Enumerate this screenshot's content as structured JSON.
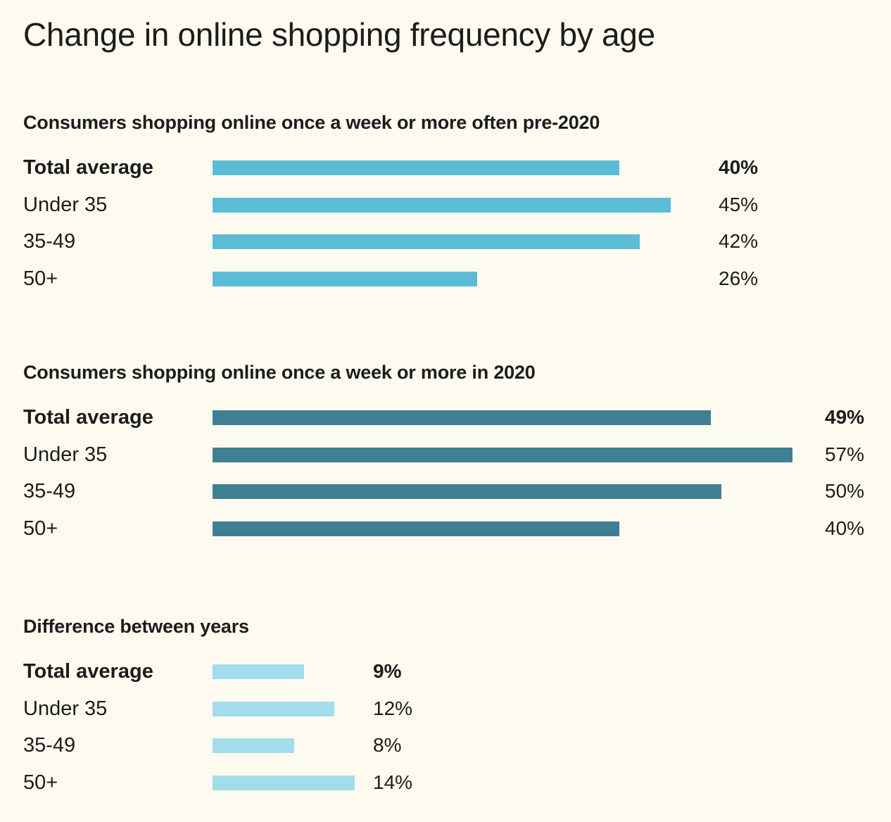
{
  "chart_data": {
    "type": "bar",
    "orientation": "horizontal",
    "title": "Change in online shopping frequency by age",
    "value_scale_max": 57,
    "panels": [
      {
        "title": "Consumers shopping online once a week or more often pre-2020",
        "color": "#5bbcd6",
        "value_column": "right",
        "categories": [
          "Total average",
          "Under 35",
          "35-49",
          "50+"
        ],
        "values": [
          40,
          45,
          42,
          26
        ],
        "labels": [
          "40%",
          "45%",
          "42%",
          "26%"
        ]
      },
      {
        "title": "Consumers shopping online once a week or more in 2020",
        "color": "#3e7f93",
        "value_column": "far-right",
        "categories": [
          "Total average",
          "Under 35",
          "35-49",
          "50+"
        ],
        "values": [
          49,
          57,
          50,
          40
        ],
        "labels": [
          "49%",
          "57%",
          "50%",
          "40%"
        ]
      },
      {
        "title": "Difference between years",
        "color": "#a3dcea",
        "value_column": "near",
        "categories": [
          "Total average",
          "Under 35",
          "35-49",
          "50+"
        ],
        "values": [
          9,
          12,
          8,
          14
        ],
        "labels": [
          "9%",
          "12%",
          "8%",
          "14%"
        ]
      }
    ]
  }
}
